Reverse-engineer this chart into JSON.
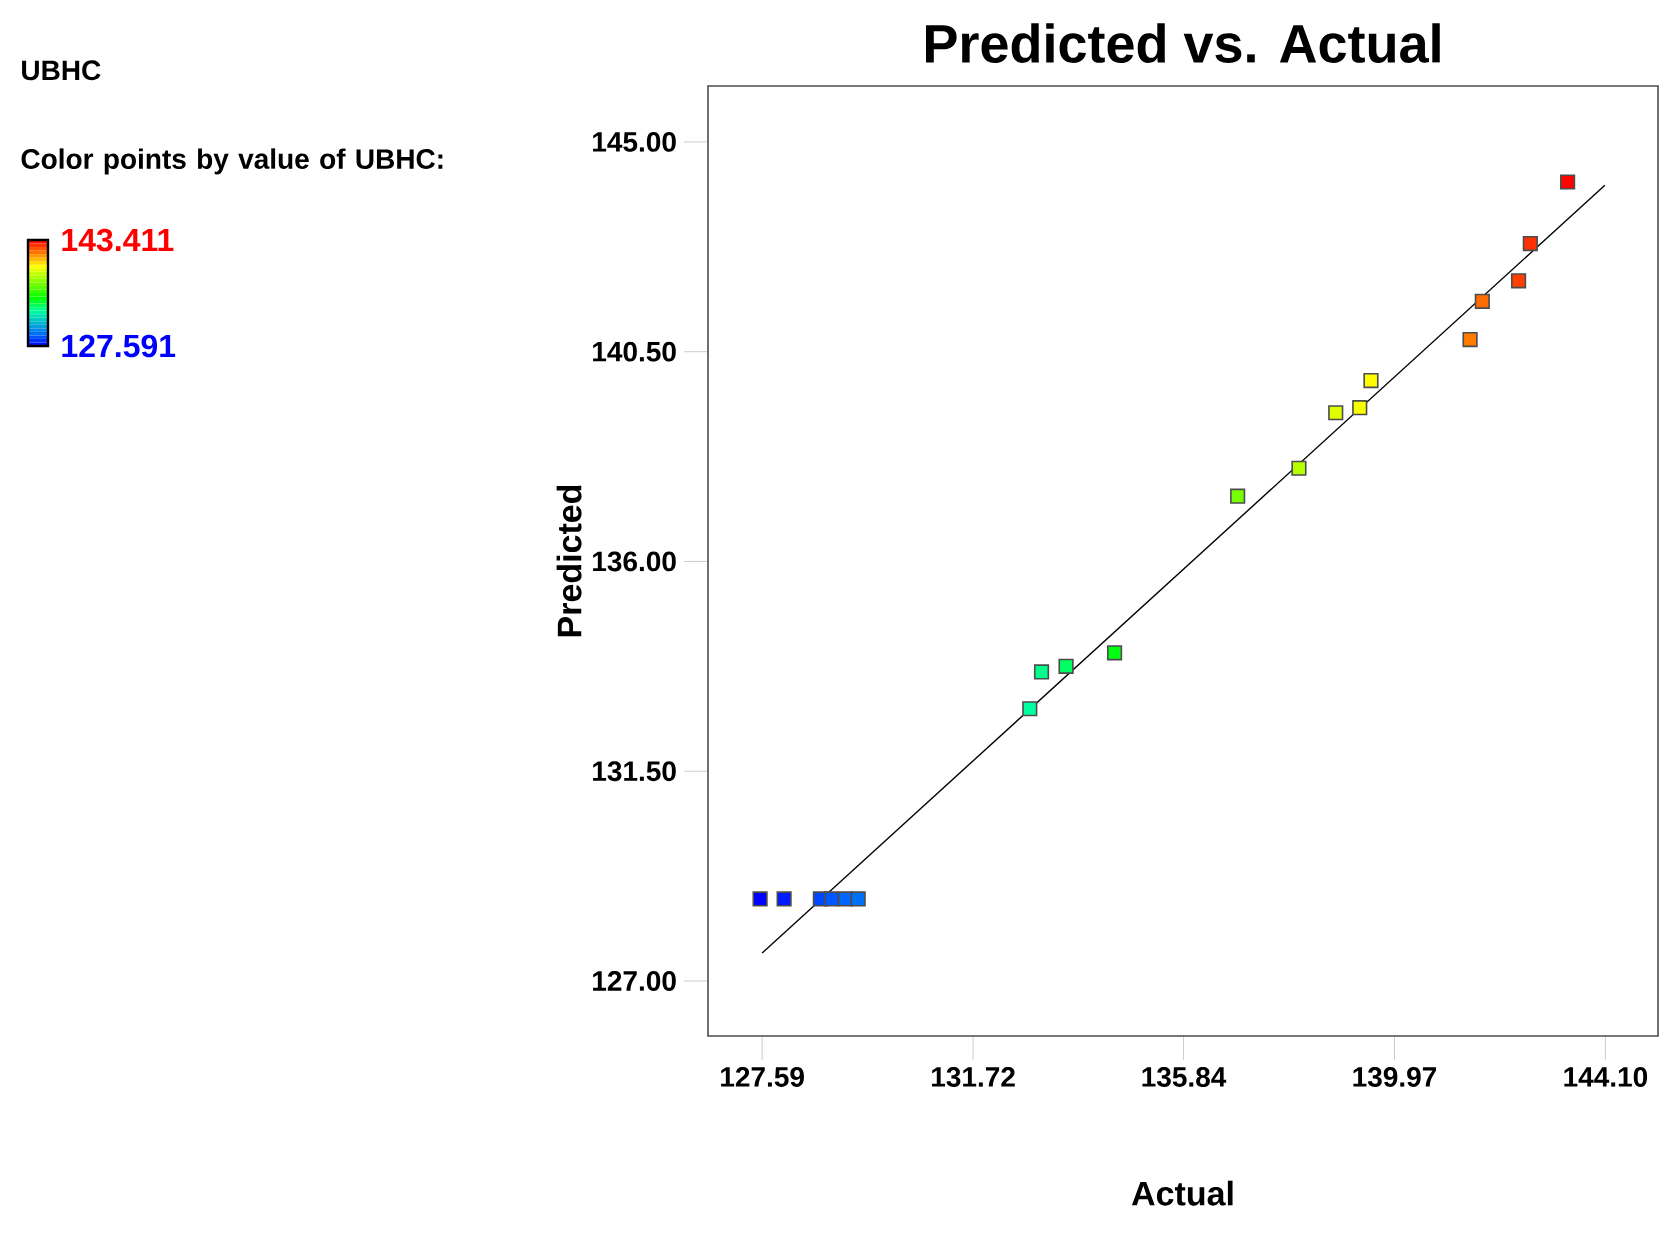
{
  "chart_data": {
    "type": "scatter",
    "title": "Predicted vs. Actual",
    "xlabel": "Actual",
    "ylabel": "Predicted",
    "clabel": "Color points by value of UBHC:",
    "annotations": [
      "UBHC"
    ],
    "xlim": [
      126.53,
      145.13
    ],
    "ylim": [
      125.82,
      146.2
    ],
    "xticks": [
      127.59,
      131.72,
      135.84,
      139.97,
      {
        "value": 144.1,
        "label": "144.10"
      }
    ],
    "yticks": [
      {
        "value": 127,
        "label": "127.00"
      },
      {
        "value": 131.5,
        "label": "131.50"
      },
      {
        "value": 136,
        "label": "136.00"
      },
      {
        "value": 140.5,
        "label": "140.50"
      },
      {
        "value": 145,
        "label": "145.00"
      }
    ],
    "clim": [
      127.591,
      143.411
    ],
    "cticks": [
      127.591,
      143.411
    ],
    "grid": false,
    "series": [
      {
        "marker": "square",
        "colors": [
          "#0000ff",
          "#001bff",
          "#0048ff",
          "#0056ff",
          "#0066fe",
          "#0071f7",
          "#00ffa0",
          "#00ff8b",
          "#00ff63",
          "#00ff13",
          "#75ff00",
          "#b6ff00",
          "#ddff00",
          "#f6ff00",
          "#fffc00",
          "#ff7c00",
          "#ff6d00",
          "#ff4000",
          "#ff3100",
          "#ff0300"
        ],
        "x": [
          127.55,
          128.02,
          128.73,
          128.95,
          129.22,
          129.47,
          132.83,
          133.06,
          133.54,
          134.49,
          136.9,
          138.1,
          138.82,
          139.29,
          139.51,
          141.45,
          141.69,
          142.4,
          142.63,
          143.36
        ],
        "values": [
          128.76,
          128.76,
          128.76,
          128.76,
          128.76,
          128.76,
          132.84,
          133.63,
          133.75,
          134.04,
          137.4,
          138.0,
          139.19,
          139.3,
          139.88,
          140.76,
          141.58,
          142.02,
          142.82,
          144.14
        ]
      },
      {
        "type": "line",
        "marker": "none",
        "color": "#000000",
        "x": [
          127.59,
          144.09
        ],
        "values": [
          127.6,
          144.07
        ]
      }
    ]
  }
}
